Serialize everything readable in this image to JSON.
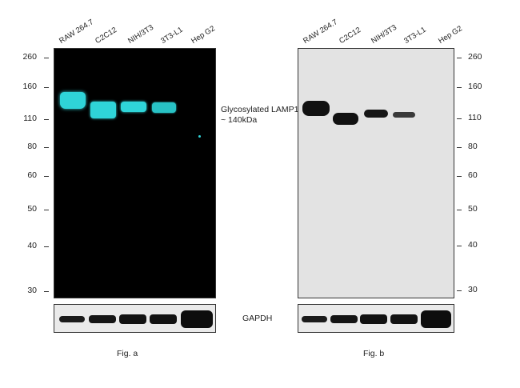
{
  "lanes": [
    "RAW 264.7",
    "C2C12",
    "NIH/3T3",
    "3T3-L1",
    "Hep G2"
  ],
  "mw_markers": [
    "260",
    "160",
    "110",
    "80",
    "60",
    "50",
    "40",
    "30"
  ],
  "annotation": {
    "line1": "Glycosylated LAMP1",
    "line2": "~ 140kDa"
  },
  "loading_control": "GAPDH",
  "captions": {
    "a": "Fig. a",
    "b": "Fig. b"
  },
  "colors": {
    "fluor_band": "#2fd4d8",
    "fluor_bg": "#000000",
    "chemi_bg": "#e3e3e3",
    "chemi_band": "#111111"
  }
}
